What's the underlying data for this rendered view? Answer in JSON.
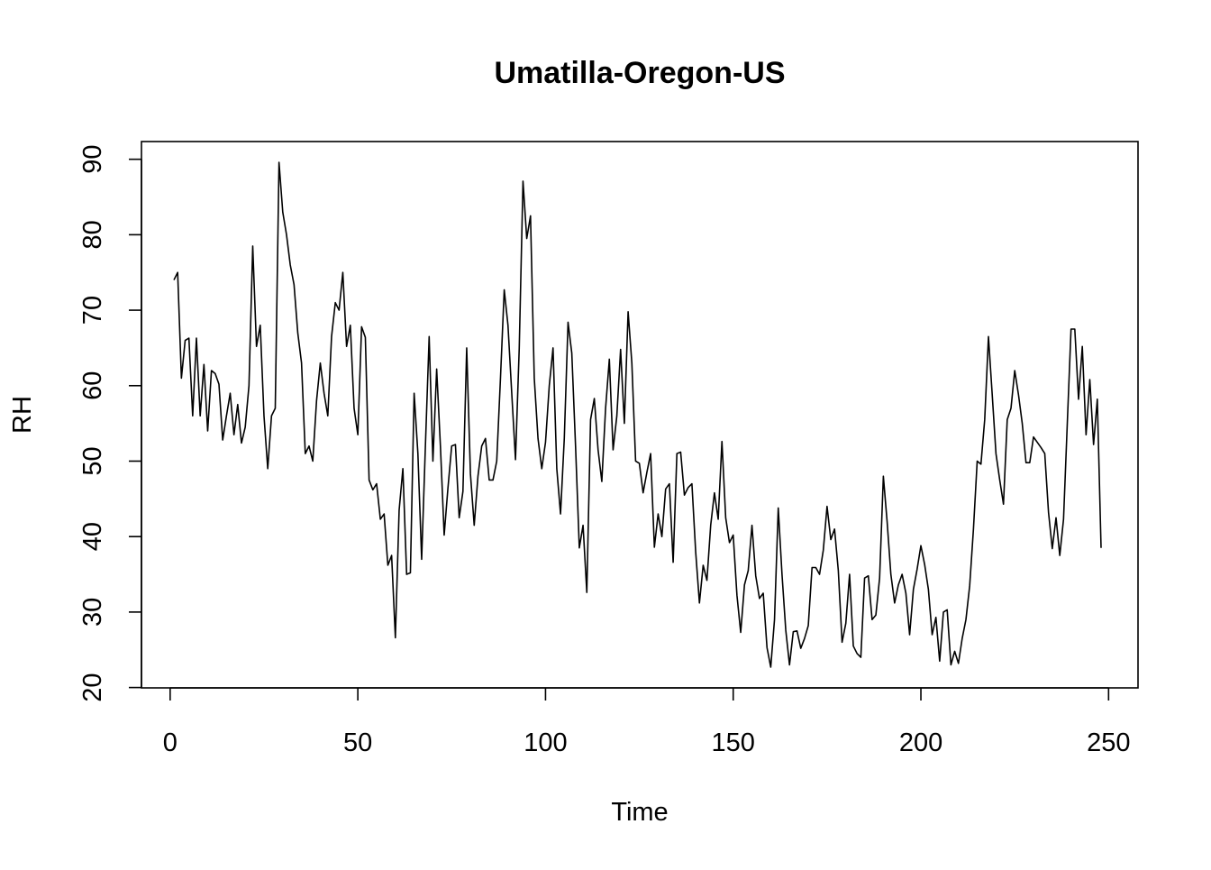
{
  "chart_data": {
    "type": "line",
    "title": "Umatilla-Oregon-US",
    "xlabel": "Time",
    "ylabel": "RH",
    "xlim": [
      1,
      248
    ],
    "ylim": [
      22.7,
      89.6
    ],
    "x_ticks": [
      0,
      50,
      100,
      150,
      200,
      250
    ],
    "y_ticks": [
      20,
      30,
      40,
      50,
      60,
      70,
      80,
      90
    ],
    "grid": false,
    "line_color": "#000000",
    "series": [
      {
        "x_start": 1,
        "x_step": 1,
        "values": [
          74.0,
          75.0,
          61.0,
          66.0,
          66.3,
          56.0,
          66.3,
          56.0,
          62.8,
          54.0,
          62.0,
          61.6,
          60.2,
          52.8,
          56.0,
          59.0,
          53.5,
          57.5,
          52.4,
          54.5,
          60.0,
          78.5,
          65.2,
          68.0,
          56.0,
          49.0,
          56.0,
          57.0,
          89.6,
          83.0,
          80.0,
          76.0,
          73.4,
          67.0,
          63.0,
          51.0,
          52.0,
          50.0,
          58.0,
          63.0,
          59.0,
          56.0,
          66.5,
          71.0,
          70.0,
          75.0,
          65.2,
          68.0,
          57.0,
          53.5,
          67.8,
          66.4,
          47.5,
          46.2,
          47.0,
          42.3,
          43.0,
          36.2,
          37.5,
          26.6,
          43.5,
          49.0,
          35.0,
          35.2,
          59.0,
          51.0,
          37.0,
          52.0,
          66.5,
          50.0,
          62.2,
          52.0,
          40.2,
          46.4,
          52.0,
          52.2,
          42.5,
          46.0,
          65.0,
          48.3,
          41.5,
          48.0,
          52.0,
          53.0,
          47.5,
          47.5,
          50.0,
          61.0,
          72.7,
          68.0,
          59.0,
          50.2,
          65.0,
          87.1,
          79.5,
          82.5,
          61.0,
          53.0,
          49.0,
          52.5,
          60.0,
          65.0,
          49.0,
          43.0,
          53.0,
          68.4,
          64.3,
          52.0,
          38.5,
          41.5,
          32.6,
          55.5,
          58.3,
          51.5,
          47.3,
          57.0,
          63.5,
          51.5,
          56.0,
          64.8,
          55.0,
          69.8,
          63.0,
          50.0,
          49.7,
          45.8,
          48.5,
          51.0,
          38.6,
          43.0,
          40.0,
          46.3,
          47.0,
          36.6,
          51.0,
          51.2,
          45.5,
          46.5,
          47.0,
          38.0,
          31.2,
          36.2,
          34.2,
          41.5,
          45.8,
          42.3,
          52.6,
          42.5,
          39.2,
          40.2,
          32.2,
          27.3,
          33.6,
          35.5,
          41.5,
          34.8,
          31.8,
          32.5,
          25.3,
          22.7,
          29.0,
          43.8,
          35.0,
          27.6,
          23.0,
          27.4,
          27.5,
          25.2,
          26.5,
          28.2,
          35.9,
          35.9,
          35.0,
          38.2,
          44.0,
          39.6,
          41.0,
          35.5,
          26.0,
          28.5,
          35.0,
          25.5,
          24.5,
          24.0,
          34.5,
          34.8,
          29.0,
          29.6,
          34.5,
          48.0,
          42.0,
          35.0,
          31.2,
          33.6,
          35.0,
          32.5,
          27.0,
          33.0,
          35.7,
          38.8,
          36.3,
          33.0,
          27.0,
          29.3,
          23.5,
          30.0,
          30.3,
          23.0,
          24.8,
          23.2,
          26.5,
          29.0,
          33.5,
          41.0,
          50.0,
          49.6,
          55.5,
          66.5,
          58.8,
          51.0,
          47.5,
          44.3,
          55.5,
          57.0,
          62.0,
          58.8,
          55.0,
          49.8,
          49.8,
          53.2,
          52.5,
          51.8,
          51.0,
          43.2,
          38.4,
          42.5,
          37.5,
          42.3,
          55.0,
          67.5,
          67.5,
          58.2,
          65.2,
          53.5,
          60.8,
          52.2,
          58.2,
          38.5
        ]
      }
    ]
  }
}
